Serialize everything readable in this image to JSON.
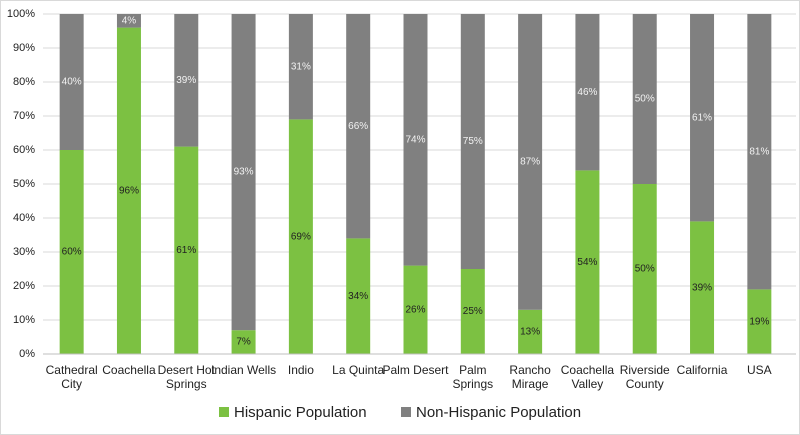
{
  "chart_data": {
    "type": "stacked_bar",
    "categories": [
      "Cathedral City",
      "Coachella",
      "Desert Hot Springs",
      "Indian Wells",
      "Indio",
      "La Quinta",
      "Palm Desert",
      "Palm Springs",
      "Rancho Mirage",
      "Coachella Valley",
      "Riverside County",
      "California",
      "USA"
    ],
    "series": [
      {
        "name": "Hispanic Population",
        "color": "#7cc142",
        "values": [
          60,
          96,
          61,
          7,
          69,
          34,
          26,
          25,
          13,
          54,
          50,
          39,
          19
        ],
        "value_labels": [
          "60%",
          "96%",
          "61%",
          "7%",
          "69%",
          "34%",
          "26%",
          "25%",
          "13%",
          "54%",
          "50%",
          "39%",
          "19%"
        ]
      },
      {
        "name": "Non-Hispanic Population",
        "color": "#808080",
        "values": [
          40,
          4,
          39,
          93,
          31,
          66,
          74,
          75,
          87,
          46,
          50,
          61,
          81
        ],
        "value_labels": [
          "40%",
          "4%",
          "39%",
          "93%",
          "31%",
          "66%",
          "74%",
          "75%",
          "87%",
          "46%",
          "50%",
          "61%",
          "81%"
        ]
      }
    ],
    "ylim": [
      0,
      100
    ],
    "yticks": [
      {
        "value": 0,
        "label": "0%"
      },
      {
        "value": 10,
        "label": "10%"
      },
      {
        "value": 20,
        "label": "20%"
      },
      {
        "value": 30,
        "label": "30%"
      },
      {
        "value": 40,
        "label": "40%"
      },
      {
        "value": 50,
        "label": "50%"
      },
      {
        "value": 60,
        "label": "60%"
      },
      {
        "value": 70,
        "label": "70%"
      },
      {
        "value": 80,
        "label": "80%"
      },
      {
        "value": 90,
        "label": "90%"
      },
      {
        "value": 100,
        "label": "100%"
      }
    ],
    "grid": true,
    "legend": "bottom"
  }
}
